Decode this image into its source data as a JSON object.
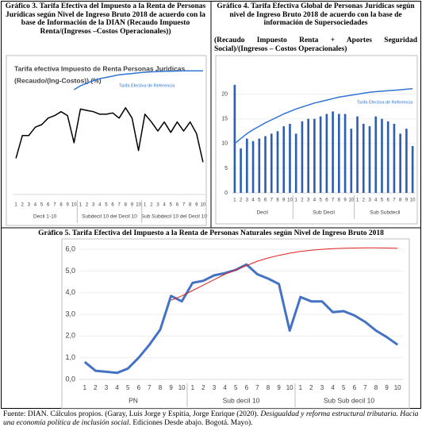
{
  "chart_data": [
    {
      "type": "line",
      "title": "Gráfico 3. Tarifa Efectiva del Impuesto a la Renta de Personas Jurídicas según Nivel de Ingreso Bruto 2018 de acuerdo con la base de Información de la DIAN (Recaudo Impuesto Renta/(Ingresos –Costos Operacionales))",
      "plot_title": [
        "Tarifa efectiva Impuesto de Renta Personas Jurídicas",
        "(Recaudo/(Ing-Costos)) (%)"
      ],
      "categories": [
        "1",
        "2",
        "3",
        "4",
        "5",
        "6",
        "7",
        "8",
        "9",
        "10",
        "1",
        "2",
        "3",
        "4",
        "5",
        "6",
        "7",
        "8",
        "9",
        "10",
        "1",
        "2",
        "3",
        "4",
        "5",
        "6",
        "7",
        "8",
        "9",
        "10"
      ],
      "groups": [
        "Decil 1-10",
        "Subdecil 10 del Decil 10",
        "Sub Subdecil 10 del Decil 10"
      ],
      "ylim": [
        0,
        100
      ],
      "series": [
        {
          "values": [
            28,
            45.6,
            45.6,
            52,
            54,
            59,
            61,
            64,
            61,
            40,
            66,
            65,
            64,
            62,
            62,
            63,
            59,
            67,
            59,
            34,
            62,
            56,
            49,
            56,
            48,
            56,
            49,
            56,
            47,
            25
          ],
          "color": "#000000"
        },
        {
          "name": "Tarifa Efectiva de Referencia",
          "type": "line",
          "color": "#2e75d6",
          "values": [
            null,
            null,
            null,
            null,
            null,
            null,
            null,
            null,
            null,
            81,
            84,
            86,
            88,
            89.5,
            90.5,
            91.5,
            92.5,
            93,
            93.5,
            94,
            94.5,
            94.8,
            95,
            95.2,
            95.3,
            95.4,
            95.5,
            95.5,
            95.5,
            95.5
          ]
        }
      ]
    },
    {
      "type": "bar",
      "title": "Gráfico 4. Tarifa Efectiva Global de Personas Jurídicas según nivel de Ingreso Bruto 2018 de acuerdo con la base de información de Supersociedades",
      "subtitle": "(Recaudo Impuesto Renta + Aportes Seguridad Social)/(Ingresos – Costos Operacionales)",
      "categories": [
        "1",
        "2",
        "3",
        "4",
        "5",
        "6",
        "7",
        "8",
        "9",
        "10",
        "1",
        "2",
        "3",
        "4",
        "5",
        "6",
        "7",
        "8",
        "9",
        "10",
        "1",
        "2",
        "3",
        "4",
        "5",
        "6",
        "7",
        "8",
        "9",
        "10"
      ],
      "groups": [
        "Decil",
        "Sub Decil",
        "Sub Subdecil"
      ],
      "ylim": [
        0,
        23
      ],
      "yticks": [
        0,
        5,
        10,
        15,
        20
      ],
      "grid": true,
      "series": [
        {
          "color": "#2f5fb3",
          "values": [
            21.9,
            9,
            11,
            10.5,
            11,
            11.5,
            12,
            12.5,
            13.5,
            14,
            12,
            14.5,
            15,
            15,
            15.5,
            16,
            16.5,
            16,
            16,
            13,
            15.5,
            14,
            13.5,
            15.5,
            15,
            14.5,
            14,
            12,
            13,
            9.5
          ]
        },
        {
          "name": "Tarifa Efectiva de Referencia",
          "type": "line",
          "color": "#2e75d6",
          "values": [
            10,
            11,
            12,
            12.8,
            13.5,
            14.2,
            14.8,
            15.4,
            16,
            16.5,
            17,
            17.4,
            17.8,
            18.2,
            18.5,
            18.8,
            19.1,
            19.4,
            19.6,
            19.8,
            20,
            20.2,
            20.4,
            20.5,
            20.6,
            20.7,
            20.8,
            20.9,
            21,
            21.1
          ]
        }
      ]
    },
    {
      "type": "line",
      "title": "Gráfico 5. Tarifa Efectiva del Impuesto a la Renta de Personas Naturales según Nivel de Ingreso Bruto 2018",
      "categories": [
        "1",
        "2",
        "3",
        "4",
        "5",
        "6",
        "7",
        "8",
        "9",
        "10",
        "1",
        "2",
        "3",
        "4",
        "5",
        "6",
        "7",
        "8",
        "9",
        "10",
        "1",
        "2",
        "3",
        "4",
        "5",
        "6",
        "7",
        "8",
        "9",
        "10"
      ],
      "groups": [
        "PN",
        "Sub decil 10",
        "Sub Sub decil 10"
      ],
      "ylim": [
        0,
        6.15
      ],
      "yticks": [
        {
          "value": 0,
          "label": "0,0"
        },
        {
          "value": 1,
          "label": "1,0"
        },
        {
          "value": 2,
          "label": "2,0"
        },
        {
          "value": 3,
          "label": "3,0"
        },
        {
          "value": 4,
          "label": "4,0"
        },
        {
          "value": 5,
          "label": "5,0"
        },
        {
          "value": 6,
          "label": "6,0"
        }
      ],
      "grid": true,
      "series": [
        {
          "color": "#4472c4",
          "values": [
            0.8,
            0.4,
            0.35,
            0.3,
            0.5,
            1.0,
            1.6,
            2.3,
            3.85,
            3.6,
            4.45,
            4.55,
            4.8,
            4.9,
            5.05,
            5.3,
            4.85,
            4.65,
            4.4,
            2.25,
            3.8,
            3.6,
            3.6,
            3.1,
            3.15,
            2.95,
            2.65,
            2.25,
            1.95,
            1.6
          ]
        },
        {
          "type": "line",
          "color": "#e02020",
          "values": [
            null,
            null,
            null,
            null,
            null,
            null,
            null,
            null,
            3.65,
            3.85,
            4.1,
            4.35,
            4.6,
            4.85,
            5.05,
            5.25,
            5.45,
            5.6,
            5.72,
            5.82,
            5.9,
            5.96,
            6.0,
            6.03,
            6.05,
            6.06,
            6.07,
            6.07,
            6.06,
            6.05
          ]
        }
      ]
    }
  ],
  "source": {
    "text_1": "Fuente: DIAN. Cálculos propios. (Garay, Luis Jorge y Espitia, Jorge Enrique (2020). ",
    "italic": "Desigualdad y reforma estructural tributaria. Hacia una economía política de inclusión social",
    "text_2": ". Ediciones Desde abajo. Bogotá. Mayo)."
  }
}
